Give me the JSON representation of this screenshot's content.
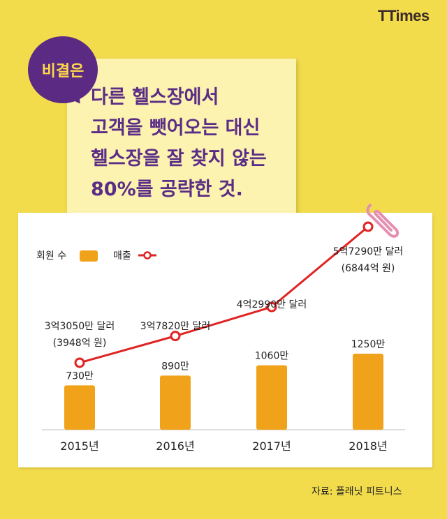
{
  "brand": {
    "logo_text": "TTimes"
  },
  "bubble": {
    "label": "비결은"
  },
  "headline": {
    "lines": [
      "다른 헬스장에서",
      "고객을 뺏어오는 대신",
      "헬스장을 잘 찾지 않는",
      "80%를 공략한 것."
    ]
  },
  "legend": {
    "members": "회원 수",
    "revenue": "매출"
  },
  "colors": {
    "bar": "#f0a31a",
    "line": "#e02424",
    "headline": "#5a2d86",
    "background": "#f3dc4c"
  },
  "chart_data": {
    "type": "bar",
    "categories": [
      "2015년",
      "2016년",
      "2017년",
      "2018년"
    ],
    "series": [
      {
        "name": "회원 수",
        "type": "bar",
        "values": [
          730,
          890,
          1060,
          1250
        ],
        "labels": [
          "730만",
          "890만",
          "1060만",
          "1250만"
        ]
      },
      {
        "name": "매출",
        "type": "line",
        "values": [
          330.5,
          378.2,
          429.9,
          572.9
        ],
        "labels": [
          [
            "3억3050만 달러",
            "(3948억 원)"
          ],
          [
            "3억7820만 달러"
          ],
          [
            "4억2990만 달러"
          ],
          [
            "5억7290만 달러",
            "(6844억 원)"
          ]
        ]
      }
    ],
    "legend": "top-left",
    "grid": false
  },
  "source": "자료: 플래닛 피트니스"
}
